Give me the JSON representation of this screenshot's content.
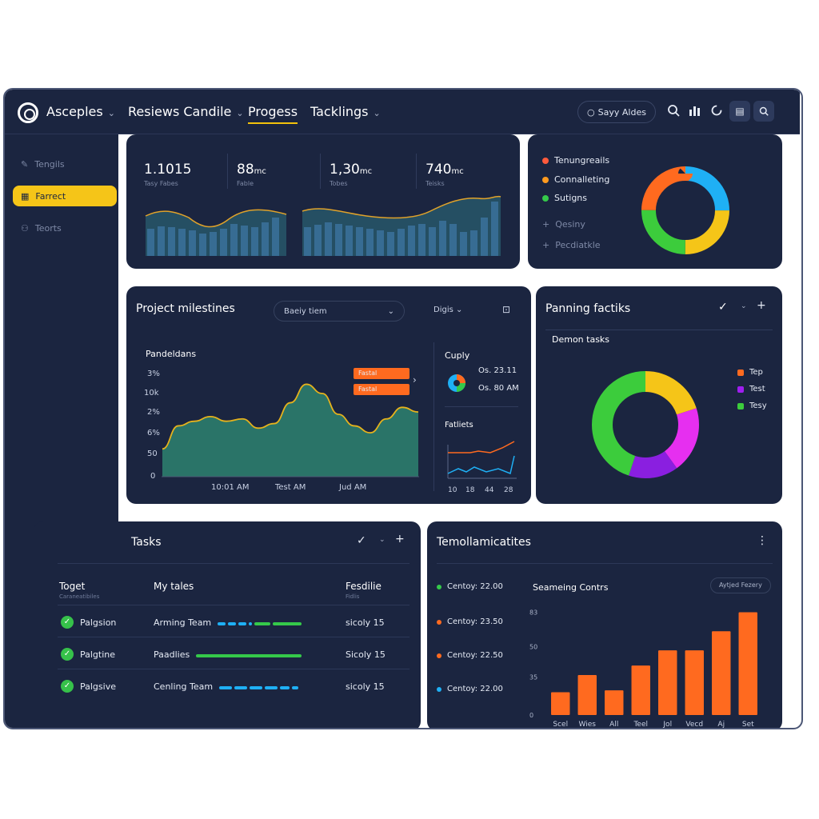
{
  "topbar": {
    "nav": [
      {
        "label": "Asceples",
        "dropdown": true
      },
      {
        "label": "Resiews Candile",
        "dropdown": true
      },
      {
        "label": "Progess",
        "dropdown": false,
        "active": true
      },
      {
        "label": "Tacklings",
        "dropdown": true
      }
    ],
    "search_label": "Sayy Aldes"
  },
  "sidebar": {
    "items": [
      {
        "label": "Tengils",
        "icon": "pen-icon",
        "active": false
      },
      {
        "label": "Farrect",
        "icon": "grid-icon",
        "active": true
      },
      {
        "label": "Teorts",
        "icon": "users-icon",
        "active": false
      }
    ]
  },
  "stats": [
    {
      "value": "1.1015",
      "unit": "",
      "label": "Tasy Fabes"
    },
    {
      "value": "88",
      "unit": "mc",
      "label": "Fable"
    },
    {
      "value": "1,30",
      "unit": "mc",
      "label": "Tobes"
    },
    {
      "value": "740",
      "unit": "mc",
      "label": "Teisks"
    }
  ],
  "donut_top": {
    "legend": [
      {
        "label": "Tenungreails",
        "color": "#ff5a3c"
      },
      {
        "label": "Connalleting",
        "color": "#ff9a1f"
      },
      {
        "label": "Sutigns",
        "color": "#35c94a"
      }
    ],
    "extra": [
      "Qesiny",
      "Pecdiatkle"
    ],
    "segments": [
      {
        "value": 25,
        "color": "#1fb0f5"
      },
      {
        "value": 25,
        "color": "#f5c518"
      },
      {
        "value": 25,
        "color": "#3ccc3c"
      },
      {
        "value": 25,
        "color": "#ff6a1f"
      }
    ]
  },
  "milestones": {
    "title": "Project milestines",
    "dropdown": "Baeiy tiem",
    "filter": "Digis",
    "chart_title": "Pandeldans",
    "y_ticks": [
      "3%",
      "10k",
      "2%",
      "6%",
      "50",
      "0"
    ],
    "x_ticks": [
      "10:01 AM",
      "Test AM",
      "Jud AM"
    ],
    "tags": [
      "Fastal",
      "Fastal"
    ],
    "side_title": "Cuply",
    "side_rows": [
      "Os. 23.11",
      "Os. 80 AM"
    ],
    "side_title2": "Fatliets",
    "mini_x": [
      "10",
      "18",
      "44",
      "28"
    ]
  },
  "panning": {
    "title": "Panning factiks",
    "subtitle": "Demon tasks",
    "legend": [
      {
        "label": "Tep",
        "color": "#ff6a1f"
      },
      {
        "label": "Test",
        "color": "#a01ef0"
      },
      {
        "label": "Tesy",
        "color": "#3ccc3c"
      }
    ],
    "segments": [
      {
        "value": 20,
        "color": "#f5c518"
      },
      {
        "value": 20,
        "color": "#e62ff0"
      },
      {
        "value": 15,
        "color": "#8a1fe0"
      },
      {
        "value": 45,
        "color": "#3ccc3c"
      }
    ]
  },
  "tasks": {
    "title": "Tasks",
    "headers": [
      {
        "label": "Toget",
        "sub": "Caraneatibiles"
      },
      {
        "label": "My tales",
        "sub": ""
      },
      {
        "label": "Fesdilie",
        "sub": "Fidlis"
      }
    ],
    "rows": [
      {
        "name": "Palgsion",
        "team": "Arming Team",
        "date": "sicoly 15",
        "progress": 0.75
      },
      {
        "name": "Palgtine",
        "team": "Paadlies",
        "date": "Sicoly 15",
        "progress": 0.75
      },
      {
        "name": "Palgsive",
        "team": "Cenling Team",
        "date": "sicoly 15",
        "progress": 0.75
      }
    ]
  },
  "templates": {
    "title": "Temollamicatites",
    "rows": [
      {
        "label": "Centoy: 22.00",
        "color": "#35c94a"
      },
      {
        "label": "Centoy: 23.50",
        "color": "#ff6a1f"
      },
      {
        "label": "Centoy: 22.50",
        "color": "#ff6a1f"
      },
      {
        "label": "Centoy: 22.00",
        "color": "#1fb0f5"
      }
    ],
    "chart_title": "Seameing Contrs",
    "button": "Aytjed Fezery"
  },
  "chart_data": [
    {
      "type": "bar",
      "title": "",
      "categories": [
        "Scel",
        "Wies",
        "All",
        "Teel",
        "Jol",
        "Vecd",
        "Aj",
        "Set"
      ],
      "values": [
        12,
        21,
        13,
        26,
        34,
        34,
        44,
        54
      ],
      "y_ticks": [
        "0",
        "35",
        "50",
        "83"
      ],
      "ylim": [
        0,
        58
      ]
    },
    {
      "type": "area",
      "title": "Pandeldans",
      "x": [
        0,
        1,
        2,
        3,
        4,
        5,
        6,
        7,
        8,
        9,
        10,
        11,
        12,
        13,
        14,
        15,
        16
      ],
      "values": [
        12,
        22,
        24,
        26,
        24,
        25,
        21,
        23,
        32,
        40,
        36,
        27,
        22,
        19,
        25,
        30,
        28
      ],
      "ylim": [
        0,
        45
      ]
    }
  ]
}
